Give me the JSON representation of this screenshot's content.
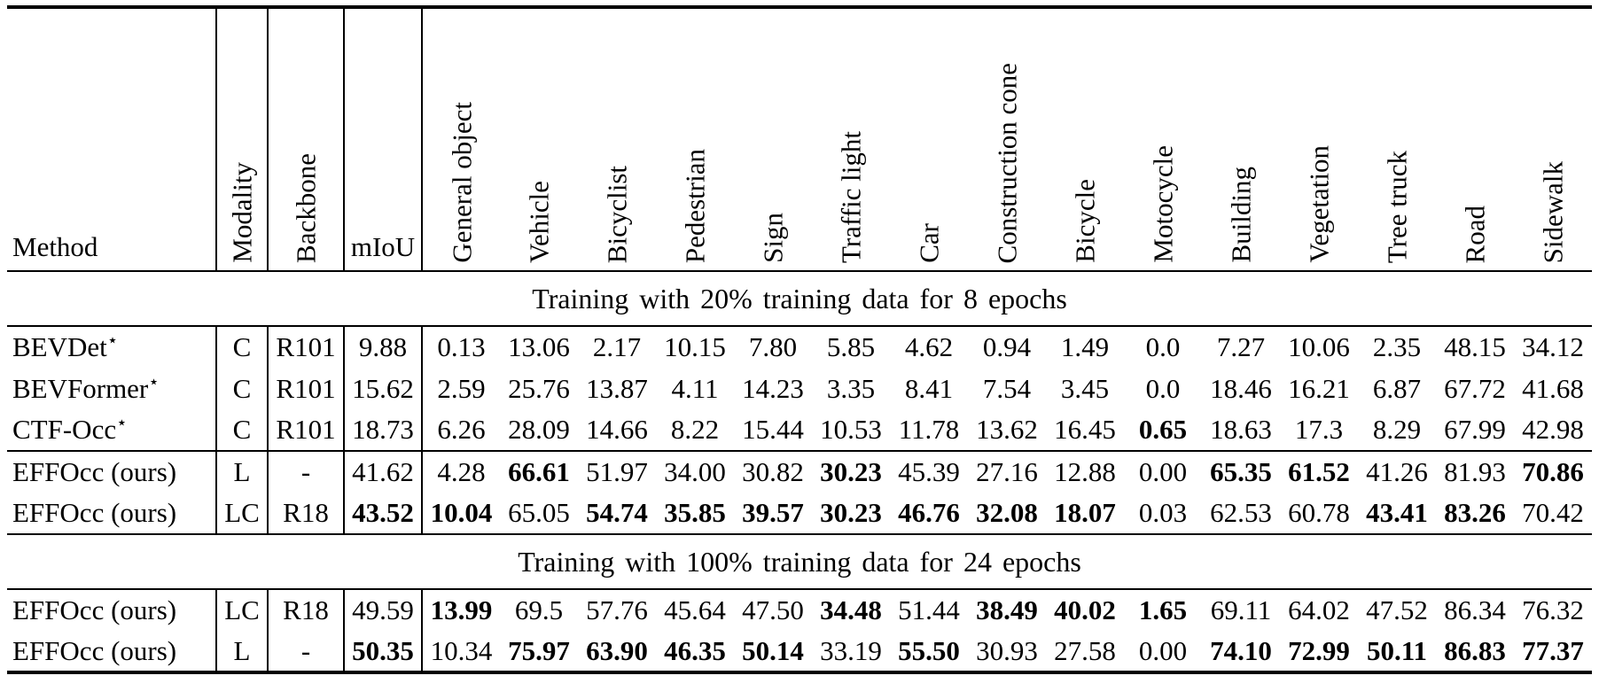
{
  "colors": {
    "text": "#000000",
    "background": "#ffffff",
    "rule": "#000000"
  },
  "header": {
    "method": "Method",
    "modality": "Modality",
    "backbone": "Backbone",
    "miou": "mIoU",
    "classes": [
      "General object",
      "Vehicle",
      "Bicyclist",
      "Pedestrian",
      "Sign",
      "Traffic light",
      "Car",
      "Construction cone",
      "Bicycle",
      "Motocycle",
      "Building",
      "Vegetation",
      "Tree truck",
      "Road",
      "Sidewalk"
    ]
  },
  "sections": [
    {
      "title": "Training with 20% training data for 8 epochs",
      "groups": [
        {
          "rows": [
            {
              "method": "BEVDet",
              "star": "⋆",
              "modality": "C",
              "backbone": "R101",
              "miou": "9.88",
              "miou_bold": false,
              "values": [
                "0.13",
                "13.06",
                "2.17",
                "10.15",
                "7.80",
                "5.85",
                "4.62",
                "0.94",
                "1.49",
                "0.0",
                "7.27",
                "10.06",
                "2.35",
                "48.15",
                "34.12"
              ],
              "bold": [
                false,
                false,
                false,
                false,
                false,
                false,
                false,
                false,
                false,
                false,
                false,
                false,
                false,
                false,
                false
              ]
            },
            {
              "method": "BEVFormer",
              "star": "⋆",
              "modality": "C",
              "backbone": "R101",
              "miou": "15.62",
              "miou_bold": false,
              "values": [
                "2.59",
                "25.76",
                "13.87",
                "4.11",
                "14.23",
                "3.35",
                "8.41",
                "7.54",
                "3.45",
                "0.0",
                "18.46",
                "16.21",
                "6.87",
                "67.72",
                "41.68"
              ],
              "bold": [
                false,
                false,
                false,
                false,
                false,
                false,
                false,
                false,
                false,
                false,
                false,
                false,
                false,
                false,
                false
              ]
            },
            {
              "method": "CTF-Occ",
              "star": "⋆",
              "modality": "C",
              "backbone": "R101",
              "miou": "18.73",
              "miou_bold": false,
              "values": [
                "6.26",
                "28.09",
                "14.66",
                "8.22",
                "15.44",
                "10.53",
                "11.78",
                "13.62",
                "16.45",
                "0.65",
                "18.63",
                "17.3",
                "8.29",
                "67.99",
                "42.98"
              ],
              "bold": [
                false,
                false,
                false,
                false,
                false,
                false,
                false,
                false,
                false,
                true,
                false,
                false,
                false,
                false,
                false
              ]
            }
          ]
        },
        {
          "rows": [
            {
              "method": "EFFOcc (ours)",
              "star": "",
              "modality": "L",
              "backbone": "-",
              "miou": "41.62",
              "miou_bold": false,
              "values": [
                "4.28",
                "66.61",
                "51.97",
                "34.00",
                "30.82",
                "30.23",
                "45.39",
                "27.16",
                "12.88",
                "0.00",
                "65.35",
                "61.52",
                "41.26",
                "81.93",
                "70.86"
              ],
              "bold": [
                false,
                true,
                false,
                false,
                false,
                true,
                false,
                false,
                false,
                false,
                true,
                true,
                false,
                false,
                true
              ]
            },
            {
              "method": "EFFOcc (ours)",
              "star": "",
              "modality": "LC",
              "backbone": "R18",
              "miou": "43.52",
              "miou_bold": true,
              "values": [
                "10.04",
                "65.05",
                "54.74",
                "35.85",
                "39.57",
                "30.23",
                "46.76",
                "32.08",
                "18.07",
                "0.03",
                "62.53",
                "60.78",
                "43.41",
                "83.26",
                "70.42"
              ],
              "bold": [
                true,
                false,
                true,
                true,
                true,
                true,
                true,
                true,
                true,
                false,
                false,
                false,
                true,
                true,
                false
              ]
            }
          ]
        }
      ]
    },
    {
      "title": "Training with 100% training data for 24 epochs",
      "groups": [
        {
          "rows": [
            {
              "method": "EFFOcc (ours)",
              "star": "",
              "modality": "LC",
              "backbone": "R18",
              "miou": "49.59",
              "miou_bold": false,
              "values": [
                "13.99",
                "69.5",
                "57.76",
                "45.64",
                "47.50",
                "34.48",
                "51.44",
                "38.49",
                "40.02",
                "1.65",
                "69.11",
                "64.02",
                "47.52",
                "86.34",
                "76.32"
              ],
              "bold": [
                true,
                false,
                false,
                false,
                false,
                true,
                false,
                true,
                true,
                true,
                false,
                false,
                false,
                false,
                false
              ]
            },
            {
              "method": "EFFOcc (ours)",
              "star": "",
              "modality": "L",
              "backbone": "-",
              "miou": "50.35",
              "miou_bold": true,
              "values": [
                "10.34",
                "75.97",
                "63.90",
                "46.35",
                "50.14",
                "33.19",
                "55.50",
                "30.93",
                "27.58",
                "0.00",
                "74.10",
                "72.99",
                "50.11",
                "86.83",
                "77.37"
              ],
              "bold": [
                false,
                true,
                true,
                true,
                true,
                false,
                true,
                false,
                false,
                false,
                true,
                true,
                true,
                true,
                true
              ]
            }
          ]
        }
      ]
    }
  ]
}
